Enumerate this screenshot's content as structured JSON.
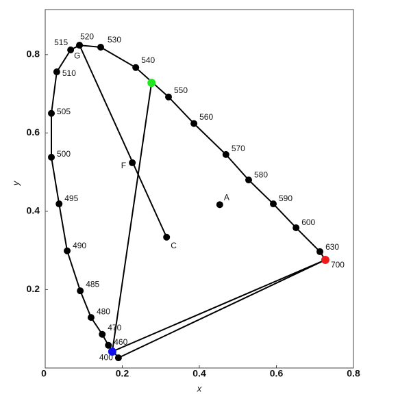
{
  "chart_data": {
    "type": "chromaticity",
    "xlabel": "x",
    "ylabel": "y",
    "xlim": [
      0,
      0.8
    ],
    "ylim": [
      0,
      0.915
    ],
    "xticks": [
      0,
      0.2,
      0.4,
      0.6,
      0.8
    ],
    "yticks": [
      0.2,
      0.4,
      0.6,
      0.8
    ],
    "locus": {
      "wavelengths": [
        400,
        460,
        470,
        480,
        485,
        490,
        495,
        500,
        505,
        510,
        515,
        520,
        530,
        540,
        550,
        560,
        570,
        580,
        590,
        600,
        630,
        700
      ],
      "x": [
        0.19,
        0.164,
        0.148,
        0.119,
        0.091,
        0.057,
        0.036,
        0.016,
        0.016,
        0.03,
        0.066,
        0.089,
        0.144,
        0.235,
        0.32,
        0.386,
        0.469,
        0.528,
        0.592,
        0.651,
        0.713,
        0.727
      ],
      "y": [
        0.026,
        0.058,
        0.086,
        0.129,
        0.197,
        0.299,
        0.419,
        0.538,
        0.65,
        0.756,
        0.812,
        0.824,
        0.819,
        0.767,
        0.692,
        0.624,
        0.545,
        0.48,
        0.419,
        0.358,
        0.297,
        0.276
      ]
    },
    "primaries": [
      {
        "color": "#22e622",
        "x": 0.276,
        "y": 0.728
      },
      {
        "color": "#1010ee",
        "x": 0.174,
        "y": 0.042
      },
      {
        "color": "#ee1a1a",
        "x": 0.727,
        "y": 0.276
      }
    ],
    "points": [
      {
        "label": "A",
        "x": 0.453,
        "y": 0.417
      },
      {
        "label": "C",
        "x": 0.315,
        "y": 0.334
      },
      {
        "label": "F",
        "x": 0.226,
        "y": 0.524
      },
      {
        "label": "G",
        "x": 0.089,
        "y": 0.824
      }
    ]
  }
}
